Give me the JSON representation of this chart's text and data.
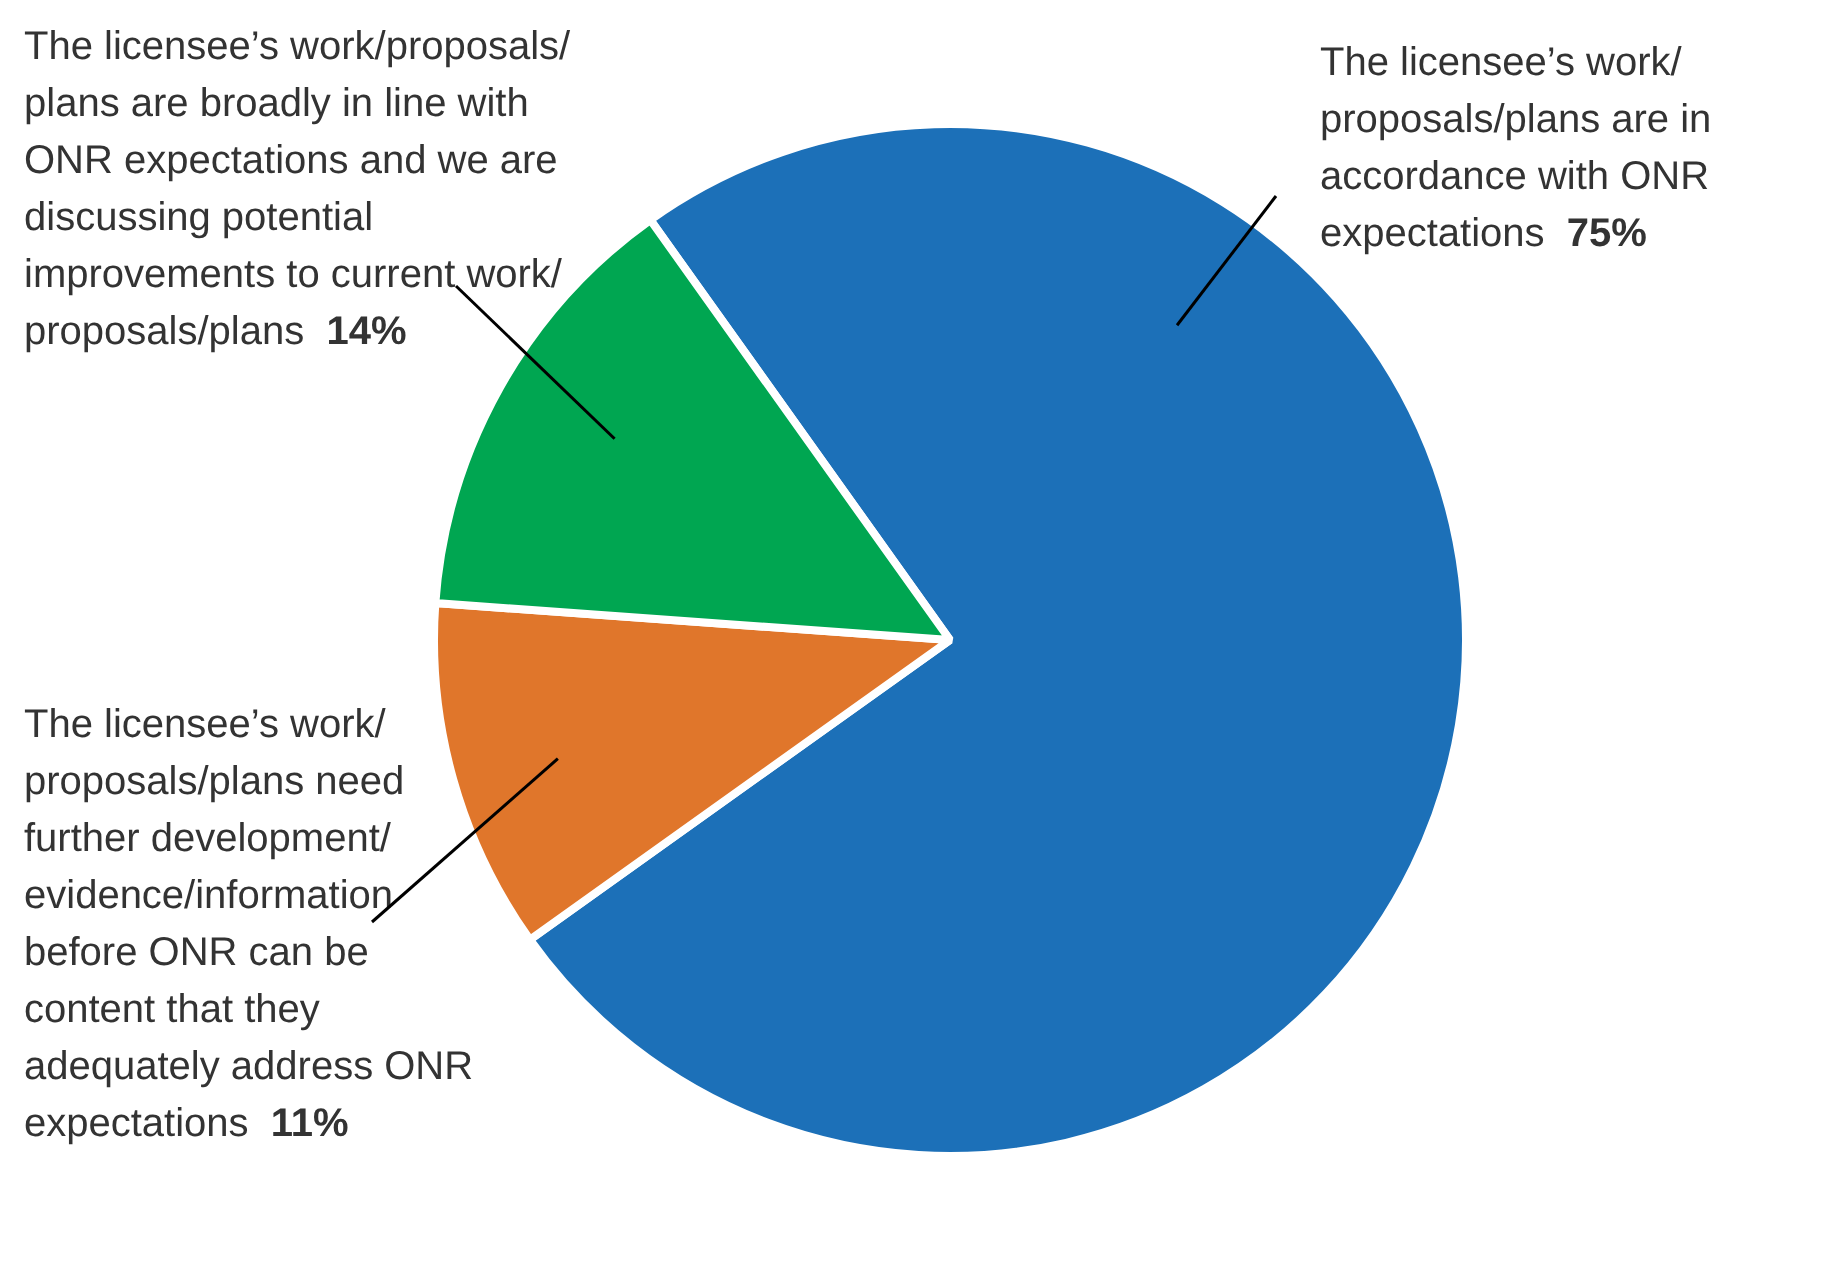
{
  "chart_data": {
    "type": "pie",
    "categories": [
      "The licensee’s work/ proposals/plans are in accordance with ONR expectations",
      "The licensee’s work/ proposals/plans need further development/ evidence/information before ONR can be content that they adequately address ONR expectations",
      "The licensee’s work/proposals/ plans are broadly in line with ONR expectations and we are discussing potential improvements to current work/ proposals/plans"
    ],
    "values": [
      75,
      11,
      14
    ],
    "colors": [
      "#1c70b8",
      "#e0762b",
      "#00a651"
    ],
    "value_labels": [
      "75%",
      "11%",
      "14%"
    ],
    "legend": false
  }
}
